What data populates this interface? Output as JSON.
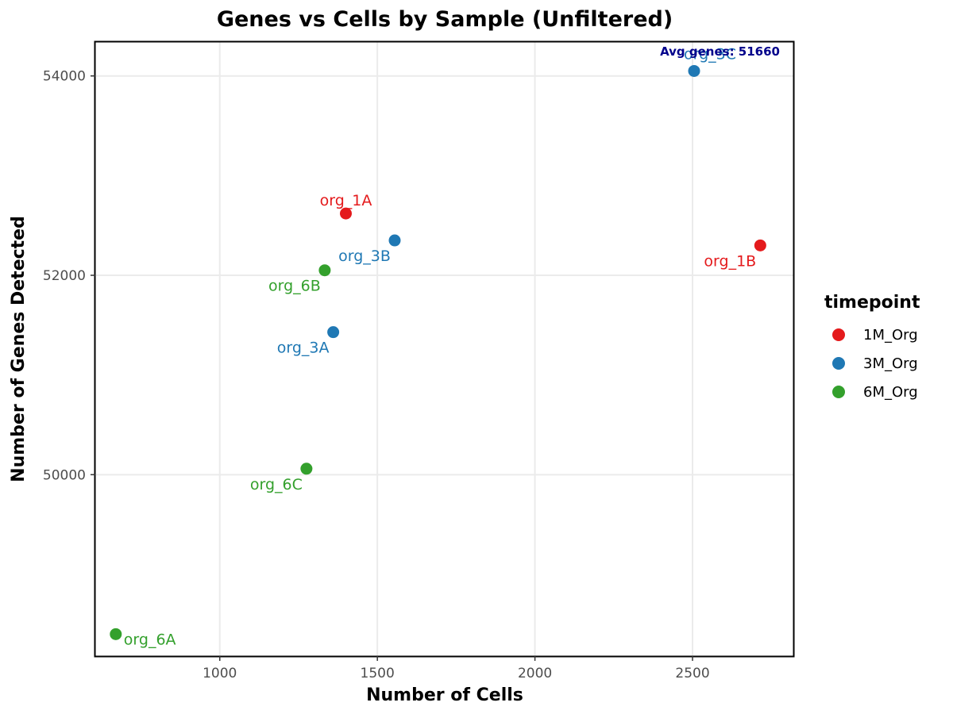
{
  "chart_data": {
    "type": "scatter",
    "title": "Genes vs Cells by Sample (Unfiltered)",
    "xlabel": "Number of Cells",
    "ylabel": "Number of Genes Detected",
    "xlim": [
      605,
      2820
    ],
    "ylim": [
      48180,
      54340
    ],
    "xticks": [
      1000,
      1500,
      2000,
      2500
    ],
    "yticks": [
      50000,
      52000,
      54000
    ],
    "grid": true,
    "legend": {
      "title": "timepoint",
      "position": "right",
      "entries": [
        {
          "name": "1M_Org",
          "color": "#e41a1c"
        },
        {
          "name": "3M_Org",
          "color": "#1f78b4"
        },
        {
          "name": "6M_Org",
          "color": "#33a02c"
        }
      ]
    },
    "points": [
      {
        "label": "org_1A",
        "timepoint": "1M_Org",
        "x": 1400,
        "y": 52620,
        "label_pos": "above"
      },
      {
        "label": "org_1B",
        "timepoint": "1M_Org",
        "x": 2715,
        "y": 52300,
        "label_pos": "below-left"
      },
      {
        "label": "org_3A",
        "timepoint": "3M_Org",
        "x": 1360,
        "y": 51430,
        "label_pos": "below-left"
      },
      {
        "label": "org_3B",
        "timepoint": "3M_Org",
        "x": 1555,
        "y": 52350,
        "label_pos": "below-left"
      },
      {
        "label": "org_3C",
        "timepoint": "3M_Org",
        "x": 2505,
        "y": 54050,
        "label_pos": "above-right"
      },
      {
        "label": "org_6A",
        "timepoint": "6M_Org",
        "x": 670,
        "y": 48400,
        "label_pos": "below-right"
      },
      {
        "label": "org_6B",
        "timepoint": "6M_Org",
        "x": 1333,
        "y": 52050,
        "label_pos": "below-left"
      },
      {
        "label": "org_6C",
        "timepoint": "6M_Org",
        "x": 1275,
        "y": 50060,
        "label_pos": "below-left"
      }
    ],
    "annotation": {
      "text": "Avg genes: 51660",
      "color": "#00008b",
      "position": "top-right"
    }
  }
}
